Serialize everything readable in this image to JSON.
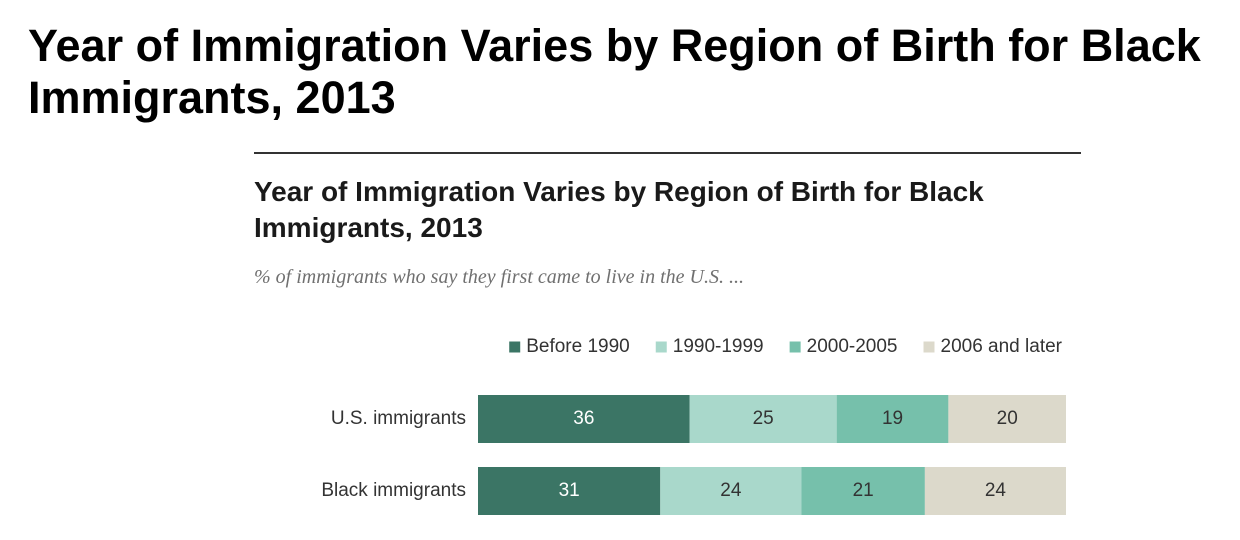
{
  "page_title": "Year of Immigration Varies by Region of Birth for Black Immigrants, 2013",
  "chart_data": {
    "type": "bar",
    "orientation": "horizontal",
    "stacked": true,
    "title": "Year of Immigration Varies by Region of Birth for Black Immigrants, 2013",
    "subtitle": "% of immigrants who say they first came to live in the U.S. ...",
    "categories": [
      "U.S. immigrants",
      "Black immigrants"
    ],
    "series": [
      {
        "name": "Before 1990",
        "color": "#3b7565",
        "label_color": "#ffffff",
        "values": [
          36,
          31
        ]
      },
      {
        "name": "1990-1999",
        "color": "#a9d8cb",
        "label_color": "#333333",
        "values": [
          25,
          24
        ]
      },
      {
        "name": "2000-2005",
        "color": "#76c0ab",
        "label_color": "#333333",
        "values": [
          19,
          21
        ]
      },
      {
        "name": "2006 and later",
        "color": "#dcd9cb",
        "label_color": "#333333",
        "values": [
          20,
          24
        ]
      }
    ],
    "xlim": [
      0,
      100
    ],
    "legend_position": "top-right",
    "grid": false
  }
}
